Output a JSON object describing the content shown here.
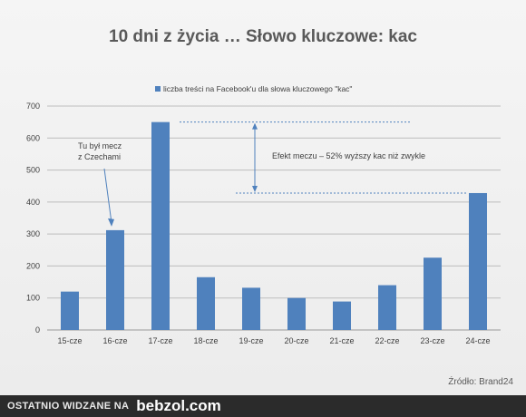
{
  "chart_data": {
    "type": "bar",
    "title": "10 dni z życia … Słowo kluczowe: kac",
    "categories": [
      "15-cze",
      "16-cze",
      "17-cze",
      "18-cze",
      "19-cze",
      "20-cze",
      "21-cze",
      "22-cze",
      "23-cze",
      "24-cze"
    ],
    "series": [
      {
        "name": "liczba treści na Facebook'u dla słowa kluczowego \"kac\"",
        "values": [
          120,
          312,
          650,
          165,
          132,
          100,
          89,
          140,
          226,
          428
        ]
      }
    ],
    "ylim": [
      0,
      700
    ],
    "yticks": [
      0,
      100,
      200,
      300,
      400,
      500,
      600,
      700
    ],
    "grid": true,
    "legend_position": "top",
    "bar_color": "#4f81bd",
    "annotations": [
      {
        "text_lines": [
          "Tu był mecz",
          "z Czechami"
        ],
        "target_category": "16-cze"
      },
      {
        "text": "Efekt meczu – 52% wyższy  kac niż zwykle",
        "from_value": 650,
        "to_value": 428
      }
    ]
  },
  "source_label": "Źródło:  Brand24",
  "footer": {
    "text": "OSTATNIO WIDZANE NA",
    "brand": "bebzol.com"
  }
}
